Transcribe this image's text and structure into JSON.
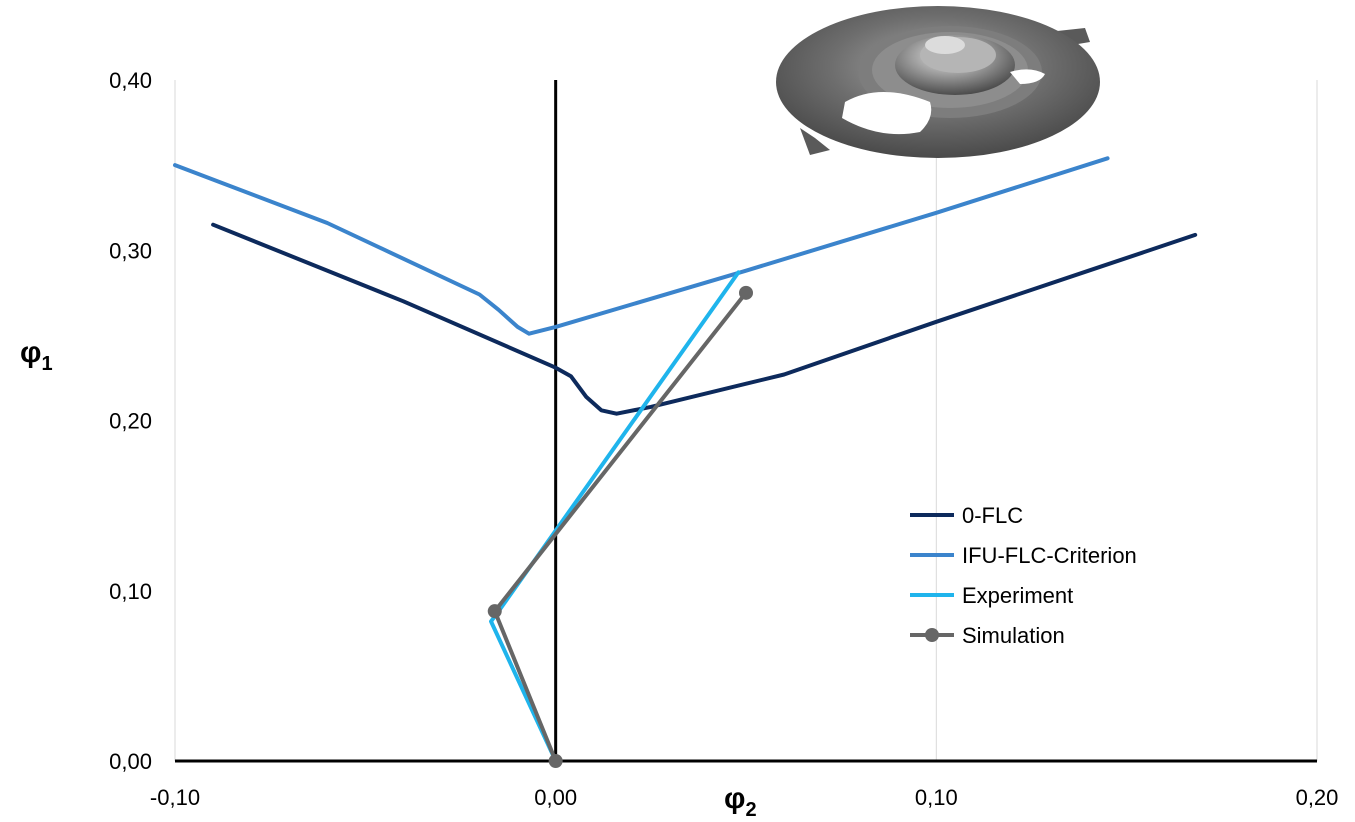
{
  "chart_data": {
    "type": "line",
    "xlabel": "φ",
    "xlabel_sub": "2",
    "ylabel": "φ",
    "ylabel_sub": "1",
    "xlim": [
      -0.1,
      0.2
    ],
    "ylim": [
      0.0,
      0.4
    ],
    "x_ticks": [
      -0.1,
      0.0,
      0.1,
      0.2
    ],
    "y_ticks": [
      0.0,
      0.1,
      0.2,
      0.3,
      0.4
    ],
    "x_tick_labels": [
      "-0,10",
      "0,00",
      "0,10",
      "0,20"
    ],
    "y_tick_labels": [
      "0,00",
      "0,10",
      "0,20",
      "0,30",
      "0,40"
    ],
    "grid": "vertical",
    "legend_position": "center-right",
    "inset_image": "stamped-circular-sheet-metal-part",
    "series": [
      {
        "name": "0-FLC",
        "color": "#0d2a5c",
        "marker": "none",
        "x": [
          -0.09,
          -0.04,
          0.0,
          0.004,
          0.008,
          0.012,
          0.016,
          0.025,
          0.06,
          0.1,
          0.14,
          0.168
        ],
        "y": [
          0.315,
          0.27,
          0.231,
          0.226,
          0.214,
          0.206,
          0.204,
          0.208,
          0.227,
          0.258,
          0.288,
          0.309
        ]
      },
      {
        "name": "IFU-FLC-Criterion",
        "color": "#3b84cc",
        "marker": "none",
        "x": [
          -0.1,
          -0.06,
          -0.02,
          -0.015,
          -0.01,
          -0.007,
          0.0,
          0.05,
          0.1,
          0.145
        ],
        "y": [
          0.35,
          0.316,
          0.274,
          0.265,
          0.255,
          0.251,
          0.255,
          0.288,
          0.322,
          0.354
        ]
      },
      {
        "name": "Experiment",
        "color": "#1fb4ec",
        "marker": "none",
        "x": [
          0.0,
          -0.017,
          -0.015,
          0.048
        ],
        "y": [
          0.0,
          0.082,
          0.088,
          0.287
        ]
      },
      {
        "name": "Simulation",
        "color": "#666666",
        "marker": "circle",
        "x": [
          0.0,
          -0.016,
          0.05
        ],
        "y": [
          0.0,
          0.088,
          0.275
        ]
      }
    ]
  }
}
